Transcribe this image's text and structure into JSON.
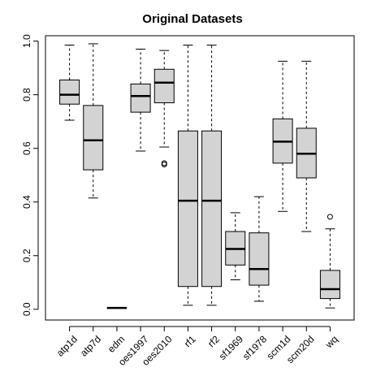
{
  "chart_data": {
    "type": "boxplot",
    "title": "Original Datasets",
    "xlabel": "",
    "ylabel": "",
    "ylim": [
      -0.04,
      1.02
    ],
    "yticks": [
      0.0,
      0.2,
      0.4,
      0.6,
      0.8,
      1.0
    ],
    "ytick_labels": [
      "0.0",
      "0.2",
      "0.4",
      "0.6",
      "0.8",
      "1.0"
    ],
    "grid": false,
    "box_fill": "#d3d3d3",
    "categories": [
      "atp1d",
      "atp7d",
      "edm",
      "oes1997",
      "oes2010",
      "rf1",
      "rf2",
      "sf1969",
      "sf1978",
      "scm1d",
      "scm20d",
      "wq"
    ],
    "boxes": [
      {
        "name": "atp1d",
        "whisker_low": 0.705,
        "q1": 0.765,
        "median": 0.8,
        "q3": 0.855,
        "whisker_high": 0.985,
        "outliers": []
      },
      {
        "name": "atp7d",
        "whisker_low": 0.415,
        "q1": 0.52,
        "median": 0.63,
        "q3": 0.76,
        "whisker_high": 0.99,
        "outliers": []
      },
      {
        "name": "edm",
        "whisker_low": 0.005,
        "q1": 0.005,
        "median": 0.005,
        "q3": 0.005,
        "whisker_high": 0.005,
        "outliers": []
      },
      {
        "name": "oes1997",
        "whisker_low": 0.59,
        "q1": 0.735,
        "median": 0.795,
        "q3": 0.84,
        "whisker_high": 0.97,
        "outliers": []
      },
      {
        "name": "oes2010",
        "whisker_low": 0.605,
        "q1": 0.77,
        "median": 0.845,
        "q3": 0.895,
        "whisker_high": 0.965,
        "outliers": [
          0.545,
          0.54
        ]
      },
      {
        "name": "rf1",
        "whisker_low": 0.015,
        "q1": 0.085,
        "median": 0.405,
        "q3": 0.665,
        "whisker_high": 0.985,
        "outliers": []
      },
      {
        "name": "rf2",
        "whisker_low": 0.015,
        "q1": 0.085,
        "median": 0.405,
        "q3": 0.665,
        "whisker_high": 0.985,
        "outliers": []
      },
      {
        "name": "sf1969",
        "whisker_low": 0.11,
        "q1": 0.165,
        "median": 0.225,
        "q3": 0.29,
        "whisker_high": 0.36,
        "outliers": []
      },
      {
        "name": "sf1978",
        "whisker_low": 0.03,
        "q1": 0.09,
        "median": 0.15,
        "q3": 0.285,
        "whisker_high": 0.42,
        "outliers": []
      },
      {
        "name": "scm1d",
        "whisker_low": 0.365,
        "q1": 0.545,
        "median": 0.625,
        "q3": 0.71,
        "whisker_high": 0.925,
        "outliers": []
      },
      {
        "name": "scm20d",
        "whisker_low": 0.29,
        "q1": 0.49,
        "median": 0.58,
        "q3": 0.675,
        "whisker_high": 0.925,
        "outliers": []
      },
      {
        "name": "wq",
        "whisker_low": 0.005,
        "q1": 0.04,
        "median": 0.075,
        "q3": 0.145,
        "whisker_high": 0.3,
        "outliers": [
          0.345
        ]
      }
    ]
  }
}
